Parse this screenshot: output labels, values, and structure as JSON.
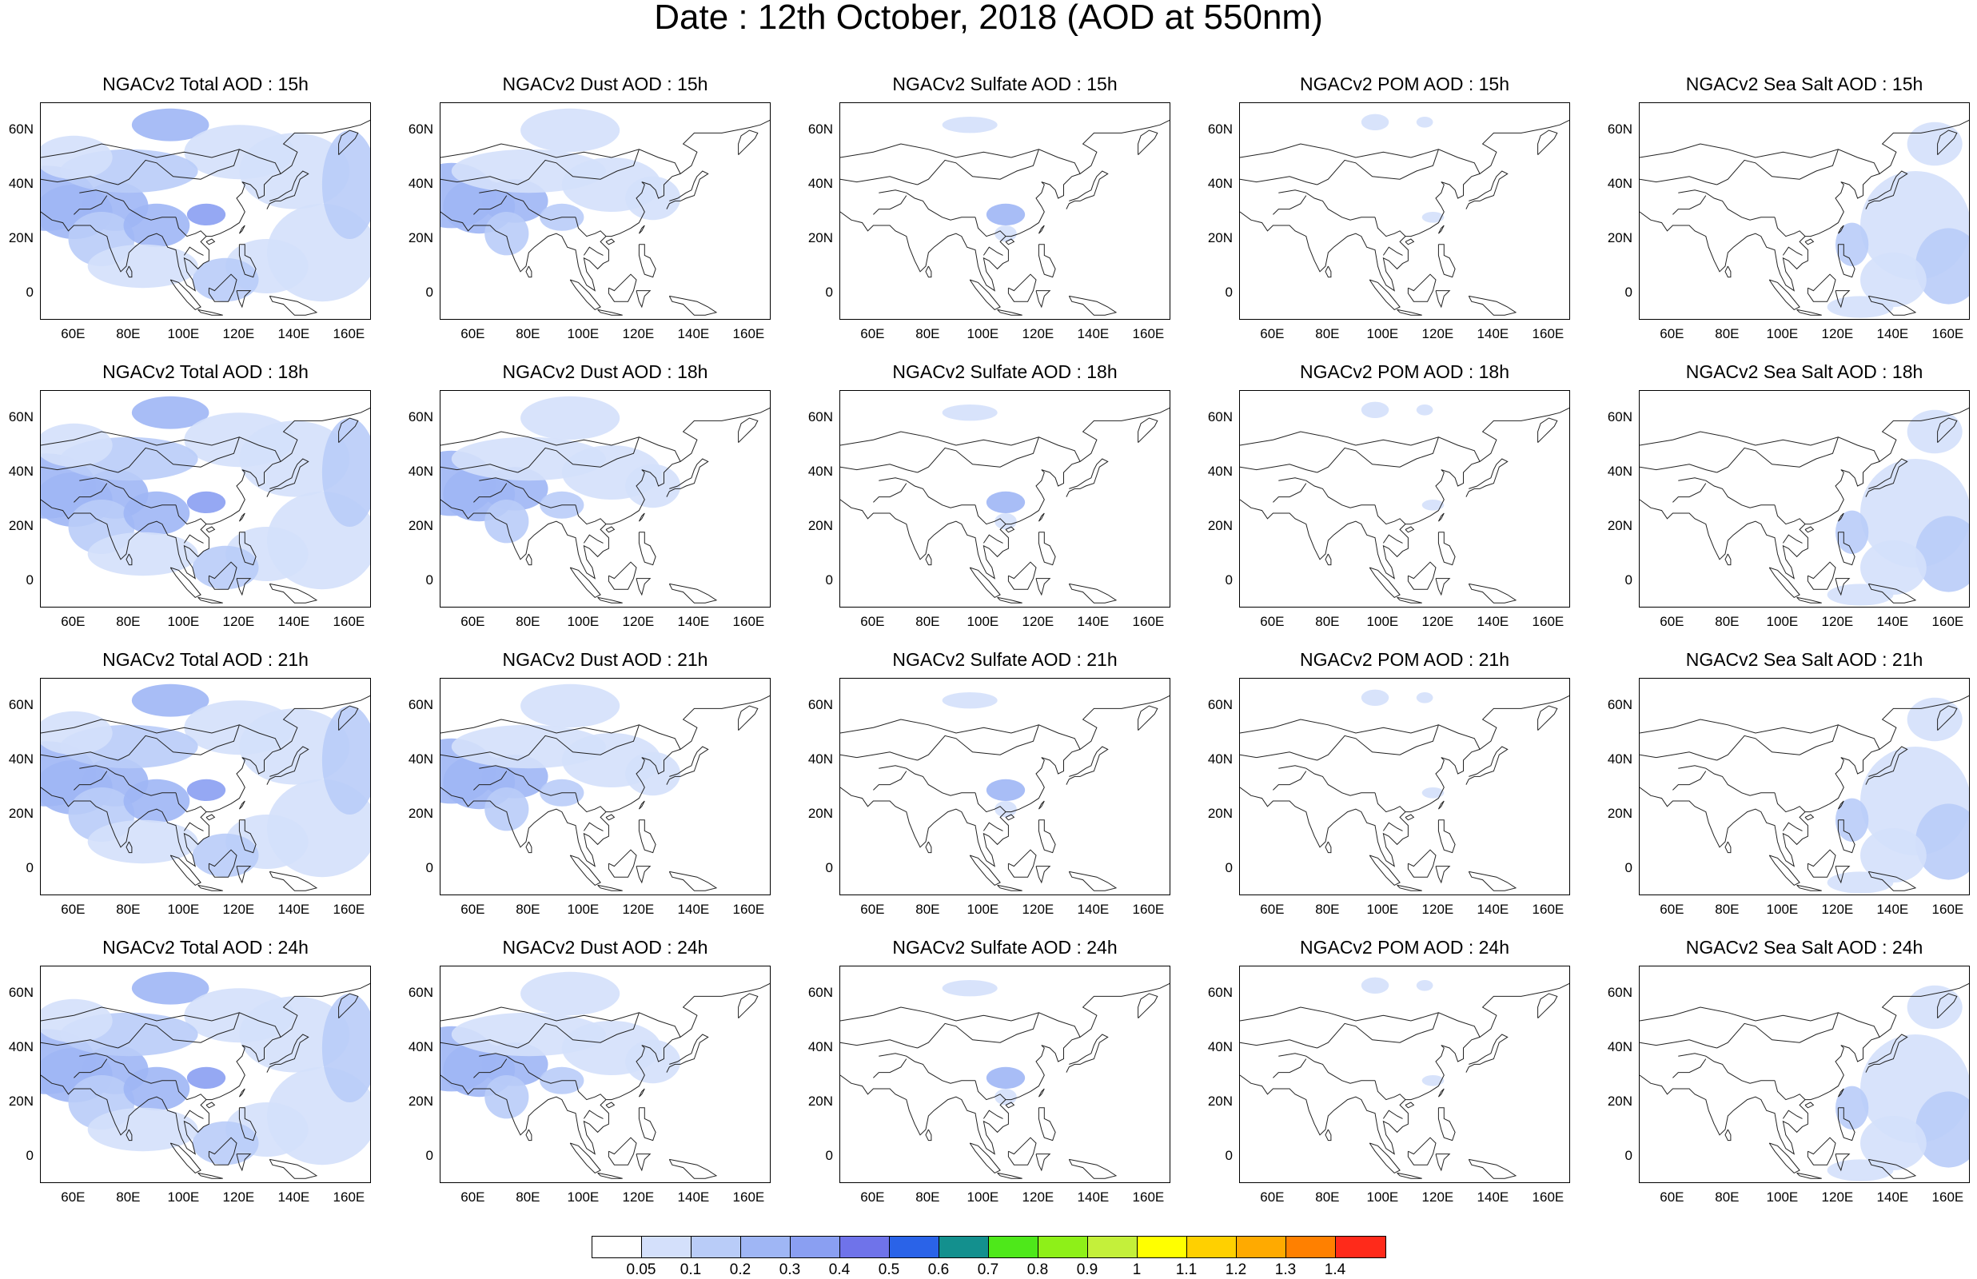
{
  "title": "Date : 12th October, 2018 (AOD at 550nm)",
  "panels": [
    {
      "title": "NGACv2 Total AOD : 15h",
      "species": "total",
      "icon": "aod-map-total"
    },
    {
      "title": "NGACv2 Dust AOD : 15h",
      "species": "dust",
      "icon": "aod-map-dust"
    },
    {
      "title": "NGACv2 Sulfate AOD : 15h",
      "species": "sulfate",
      "icon": "aod-map-sulfate"
    },
    {
      "title": "NGACv2 POM AOD : 15h",
      "species": "pom",
      "icon": "aod-map-pom"
    },
    {
      "title": "NGACv2 Sea Salt AOD : 15h",
      "species": "seasalt",
      "icon": "aod-map-seasalt"
    },
    {
      "title": "NGACv2 Total AOD : 18h",
      "species": "total",
      "icon": "aod-map-total"
    },
    {
      "title": "NGACv2 Dust AOD : 18h",
      "species": "dust",
      "icon": "aod-map-dust"
    },
    {
      "title": "NGACv2 Sulfate AOD : 18h",
      "species": "sulfate",
      "icon": "aod-map-sulfate"
    },
    {
      "title": "NGACv2 POM AOD : 18h",
      "species": "pom",
      "icon": "aod-map-pom"
    },
    {
      "title": "NGACv2 Sea Salt AOD : 18h",
      "species": "seasalt",
      "icon": "aod-map-seasalt"
    },
    {
      "title": "NGACv2 Total AOD : 21h",
      "species": "total",
      "icon": "aod-map-total"
    },
    {
      "title": "NGACv2 Dust AOD : 21h",
      "species": "dust",
      "icon": "aod-map-dust"
    },
    {
      "title": "NGACv2 Sulfate AOD : 21h",
      "species": "sulfate",
      "icon": "aod-map-sulfate"
    },
    {
      "title": "NGACv2 POM AOD : 21h",
      "species": "pom",
      "icon": "aod-map-pom"
    },
    {
      "title": "NGACv2 Sea Salt AOD : 21h",
      "species": "seasalt",
      "icon": "aod-map-seasalt"
    },
    {
      "title": "NGACv2 Total AOD : 24h",
      "species": "total",
      "icon": "aod-map-total"
    },
    {
      "title": "NGACv2 Dust AOD : 24h",
      "species": "dust",
      "icon": "aod-map-dust"
    },
    {
      "title": "NGACv2 Sulfate AOD : 24h",
      "species": "sulfate",
      "icon": "aod-map-sulfate"
    },
    {
      "title": "NGACv2 POM AOD : 24h",
      "species": "pom",
      "icon": "aod-map-pom"
    },
    {
      "title": "NGACv2 Sea Salt  AOD : 24h",
      "species": "seasalt",
      "icon": "aod-map-seasalt"
    }
  ],
  "lat_ticks": [
    "60N",
    "40N",
    "20N",
    "0"
  ],
  "lon_ticks": [
    "60E",
    "80E",
    "100E",
    "120E",
    "140E",
    "160E"
  ],
  "colorbar": {
    "labels": [
      "0.05",
      "0.1",
      "0.2",
      "0.3",
      "0.4",
      "0.5",
      "0.6",
      "0.7",
      "0.8",
      "0.9",
      "1",
      "1.1",
      "1.2",
      "1.3",
      "1.4"
    ],
    "colors": [
      "#ffffff",
      "#d4e0fb",
      "#b9ccf8",
      "#9fb6f5",
      "#8a9ff2",
      "#6f73ea",
      "#2a63e8",
      "#13908e",
      "#4ee81a",
      "#8ef018",
      "#c4f03a",
      "#ffff00",
      "#ffd000",
      "#ffaa00",
      "#ff8000",
      "#ff2a1a"
    ]
  }
}
